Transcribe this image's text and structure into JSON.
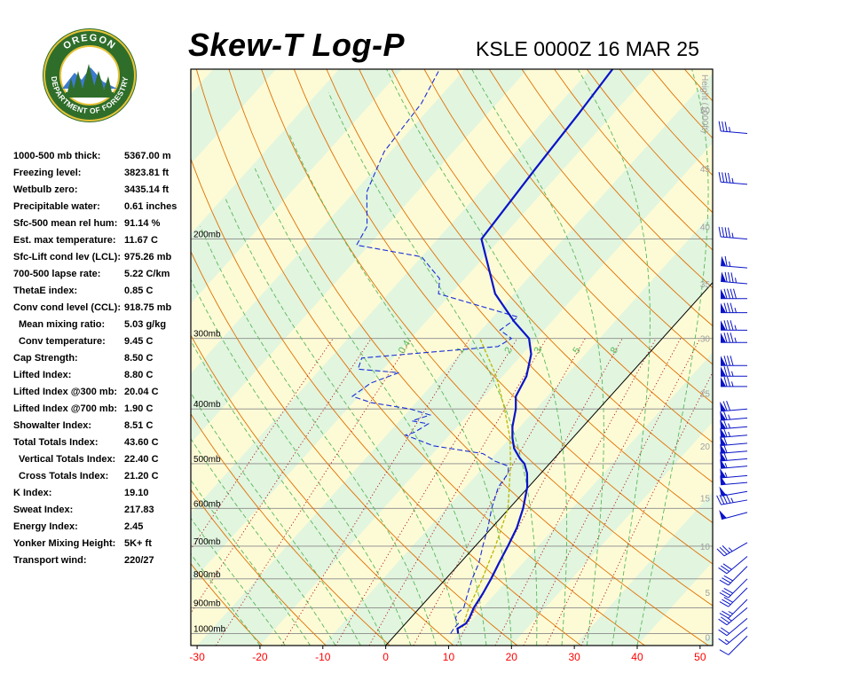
{
  "header": {
    "title": "Skew-T Log-P",
    "subtitle": "KSLE 0000Z 16 MAR 25",
    "logo_top_text": "OREGON",
    "logo_bottom_text": "DEPARTMENT OF FORESTRY"
  },
  "indices": [
    {
      "label": "1000-500 mb thick:",
      "value": "5367.00 m"
    },
    {
      "label": "Freezing level:",
      "value": "3823.81 ft"
    },
    {
      "label": "Wetbulb zero:",
      "value": "3435.14 ft"
    },
    {
      "label": "Precipitable water:",
      "value": "0.61 inches"
    },
    {
      "label": "Sfc-500 mean rel hum:",
      "value": "91.14 %"
    },
    {
      "label": "Est. max temperature:",
      "value": "11.67 C"
    },
    {
      "label": "Sfc-Lift cond lev (LCL):",
      "value": "975.26 mb"
    },
    {
      "label": "700-500 lapse rate:",
      "value": "5.22 C/km"
    },
    {
      "label": "ThetaE index:",
      "value": "0.85 C"
    },
    {
      "label": "Conv cond level (CCL):",
      "value": "918.75 mb"
    },
    {
      "label": "Mean mixing ratio:",
      "value": "5.03 g/kg",
      "indent": true
    },
    {
      "label": "Conv temperature:",
      "value": "9.45 C",
      "indent": true
    },
    {
      "label": "Cap Strength:",
      "value": "8.50 C"
    },
    {
      "label": "Lifted Index:",
      "value": "8.80 C"
    },
    {
      "label": "Lifted Index @300 mb:",
      "value": "20.04 C"
    },
    {
      "label": "Lifted Index @700 mb:",
      "value": "1.90 C"
    },
    {
      "label": "Showalter Index:",
      "value": "8.51 C"
    },
    {
      "label": "Total Totals Index:",
      "value": "43.60 C"
    },
    {
      "label": "Vertical Totals Index:",
      "value": "22.40 C",
      "indent": true
    },
    {
      "label": "Cross Totals Index:",
      "value": "21.20 C",
      "indent": true
    },
    {
      "label": "K Index:",
      "value": "19.10"
    },
    {
      "label": "Sweat Index:",
      "value": "217.83"
    },
    {
      "label": "Energy Index:",
      "value": "2.45"
    },
    {
      "label": "Yonker Mixing Height:",
      "value": "5K+ ft"
    },
    {
      "label": "Transport wind:",
      "value": "220/27"
    }
  ],
  "chart_data": {
    "type": "line",
    "x_ticks": [
      -30,
      -20,
      -10,
      0,
      10,
      20,
      30,
      40,
      50
    ],
    "xlim": [
      -31,
      52
    ],
    "ylim_mb": [
      1050,
      100
    ],
    "y_scale": "log",
    "pressure_levels": [
      {
        "p": 200,
        "label": "200mb"
      },
      {
        "p": 300,
        "label": "300mb"
      },
      {
        "p": 400,
        "label": "400mb"
      },
      {
        "p": 500,
        "label": "500mb"
      },
      {
        "p": 600,
        "label": "600mb"
      },
      {
        "p": 700,
        "label": "700mb"
      },
      {
        "p": 800,
        "label": "800mb"
      },
      {
        "p": 900,
        "label": "900mb"
      },
      {
        "p": 1000,
        "label": "1000mb"
      }
    ],
    "height_axis_label": "Height (1000ft)",
    "height_ticks": [
      {
        "label": "0",
        "p": 1015
      },
      {
        "label": "5",
        "p": 845
      },
      {
        "label": "10",
        "p": 700
      },
      {
        "label": "15",
        "p": 575
      },
      {
        "label": "20",
        "p": 465
      },
      {
        "label": "25",
        "p": 375
      },
      {
        "label": "30",
        "p": 300
      },
      {
        "label": "35",
        "p": 240
      },
      {
        "label": "40",
        "p": 190
      },
      {
        "label": "45",
        "p": 150
      },
      {
        "label": "50",
        "p": 118
      }
    ],
    "mixing_ratio_labels": [
      "0.4",
      "1",
      "2",
      "3",
      "5",
      "8"
    ],
    "temperature": [
      [
        1000,
        9.8
      ],
      [
        980,
        9.0
      ],
      [
        960,
        9.6
      ],
      [
        940,
        9.4
      ],
      [
        920,
        9.0
      ],
      [
        900,
        8.6
      ],
      [
        850,
        8.0
      ],
      [
        800,
        7.2
      ],
      [
        750,
        6.2
      ],
      [
        700,
        5.2
      ],
      [
        650,
        4.0
      ],
      [
        600,
        2.2
      ],
      [
        550,
        -0.2
      ],
      [
        520,
        -2.2
      ],
      [
        500,
        -4.0
      ],
      [
        490,
        -5.4
      ],
      [
        470,
        -7.8
      ],
      [
        450,
        -9.6
      ],
      [
        430,
        -11.2
      ],
      [
        400,
        -13.2
      ],
      [
        380,
        -15.0
      ],
      [
        350,
        -16.2
      ],
      [
        320,
        -18.6
      ],
      [
        300,
        -21.2
      ],
      [
        280,
        -26.0
      ],
      [
        250,
        -33.0
      ],
      [
        200,
        -43.0
      ],
      [
        150,
        -44.5
      ],
      [
        120,
        -45.5
      ],
      [
        100,
        -46.5
      ]
    ],
    "dewpoint": [
      [
        1000,
        8.6
      ],
      [
        980,
        8.4
      ],
      [
        960,
        8.4
      ],
      [
        940,
        7.2
      ],
      [
        920,
        6.8
      ],
      [
        900,
        7.0
      ],
      [
        850,
        5.6
      ],
      [
        800,
        4.2
      ],
      [
        750,
        3.0
      ],
      [
        700,
        1.2
      ],
      [
        650,
        -0.6
      ],
      [
        600,
        -2.8
      ],
      [
        550,
        -4.8
      ],
      [
        520,
        -5.2
      ],
      [
        505,
        -6.2
      ],
      [
        495,
        -9.0
      ],
      [
        480,
        -12.0
      ],
      [
        465,
        -21.0
      ],
      [
        445,
        -27.0
      ],
      [
        440,
        -26.0
      ],
      [
        425,
        -25.0
      ],
      [
        420,
        -28.0
      ],
      [
        410,
        -26.0
      ],
      [
        400,
        -30.0
      ],
      [
        390,
        -37.0
      ],
      [
        380,
        -41.0
      ],
      [
        360,
        -40.0
      ],
      [
        345,
        -37.0
      ],
      [
        340,
        -44.0
      ],
      [
        325,
        -45.0
      ],
      [
        318,
        -36.0
      ],
      [
        310,
        -25.0
      ],
      [
        300,
        -24.0
      ],
      [
        290,
        -27.0
      ],
      [
        275,
        -26.0
      ],
      [
        250,
        -42.0
      ],
      [
        235,
        -44.0
      ],
      [
        215,
        -50.0
      ],
      [
        205,
        -62.0
      ],
      [
        190,
        -63.0
      ],
      [
        165,
        -68.0
      ],
      [
        140,
        -71.0
      ],
      [
        115,
        -72.0
      ],
      [
        100,
        -74.0
      ]
    ],
    "parcel": [
      [
        975,
        9.6
      ],
      [
        900,
        7.8
      ],
      [
        800,
        5.8
      ],
      [
        700,
        3.2
      ],
      [
        600,
        -0.2
      ],
      [
        500,
        -6.2
      ],
      [
        450,
        -10.0
      ],
      [
        400,
        -15.0
      ],
      [
        350,
        -21.0
      ],
      [
        300,
        -29.0
      ]
    ],
    "wind_barbs": [
      {
        "p": 1010,
        "dir": 225,
        "kt": 10
      },
      {
        "p": 975,
        "dir": 230,
        "kt": 15
      },
      {
        "p": 940,
        "dir": 230,
        "kt": 20
      },
      {
        "p": 900,
        "dir": 230,
        "kt": 25
      },
      {
        "p": 870,
        "dir": 225,
        "kt": 25
      },
      {
        "p": 830,
        "dir": 225,
        "kt": 30
      },
      {
        "p": 800,
        "dir": 225,
        "kt": 30
      },
      {
        "p": 760,
        "dir": 225,
        "kt": 30
      },
      {
        "p": 730,
        "dir": 230,
        "kt": 30
      },
      {
        "p": 690,
        "dir": 240,
        "kt": 35
      },
      {
        "p": 610,
        "dir": 255,
        "kt": 50
      },
      {
        "p": 580,
        "dir": 260,
        "kt": 45
      },
      {
        "p": 560,
        "dir": 260,
        "kt": 50
      },
      {
        "p": 540,
        "dir": 265,
        "kt": 50
      },
      {
        "p": 525,
        "dir": 265,
        "kt": 55
      },
      {
        "p": 505,
        "dir": 265,
        "kt": 55
      },
      {
        "p": 490,
        "dir": 265,
        "kt": 60
      },
      {
        "p": 475,
        "dir": 265,
        "kt": 60
      },
      {
        "p": 460,
        "dir": 265,
        "kt": 60
      },
      {
        "p": 445,
        "dir": 265,
        "kt": 65
      },
      {
        "p": 430,
        "dir": 265,
        "kt": 65
      },
      {
        "p": 415,
        "dir": 265,
        "kt": 65
      },
      {
        "p": 400,
        "dir": 265,
        "kt": 70
      },
      {
        "p": 365,
        "dir": 270,
        "kt": 75
      },
      {
        "p": 350,
        "dir": 270,
        "kt": 75
      },
      {
        "p": 335,
        "dir": 270,
        "kt": 80
      },
      {
        "p": 305,
        "dir": 270,
        "kt": 85
      },
      {
        "p": 290,
        "dir": 270,
        "kt": 85
      },
      {
        "p": 270,
        "dir": 270,
        "kt": 85
      },
      {
        "p": 255,
        "dir": 270,
        "kt": 90
      },
      {
        "p": 240,
        "dir": 275,
        "kt": 85
      },
      {
        "p": 225,
        "dir": 275,
        "kt": 65
      },
      {
        "p": 200,
        "dir": 275,
        "kt": 45
      },
      {
        "p": 160,
        "dir": 275,
        "kt": 45
      },
      {
        "p": 130,
        "dir": 275,
        "kt": 35
      }
    ]
  },
  "colors": {
    "temperature": "#0a14c8",
    "dewpoint": "#1a2ed8",
    "parcel": "#b8b800",
    "dry_adiabat": "#e07000",
    "moist_adiabat": "#5ab85a",
    "mixing_ratio": "#b41414",
    "tick_label": "#ff0000",
    "band_yellow": "#fdfbd6",
    "band_green": "#e2f5df"
  }
}
